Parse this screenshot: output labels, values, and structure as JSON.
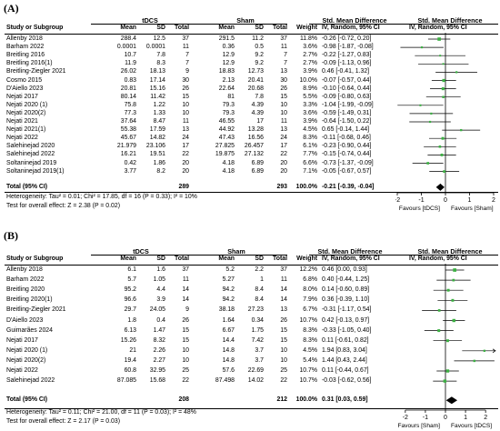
{
  "chart_data": [
    {
      "type": "forest",
      "panel_label": "(A)",
      "title": "Std. Mean Difference",
      "subtitle": "IV, Random, 95% CI",
      "columns": {
        "study": "Study or Subgroup",
        "group1": "tDCS",
        "group2": "Sham",
        "mean": "Mean",
        "sd": "SD",
        "total": "Total",
        "weight": "Weight",
        "effect_header": "Std. Mean Difference",
        "effect_sub": "IV, Random, 95% CI"
      },
      "studies": [
        {
          "name": "Allenby 2018",
          "t_mean": "288.4",
          "t_sd": "12.5",
          "t_n": "37",
          "s_mean": "291.5",
          "s_sd": "11.2",
          "s_n": "37",
          "weight": "11.8%",
          "ci_text": "-0.26 [-0.72, 0.20]",
          "smd": -0.26,
          "lo": -0.72,
          "hi": 0.2
        },
        {
          "name": "Barham 2022",
          "t_mean": "0.0001",
          "t_sd": "0.0001",
          "t_n": "11",
          "s_mean": "0.36",
          "s_sd": "0.5",
          "s_n": "11",
          "weight": "3.6%",
          "ci_text": "-0.98 [-1.87, -0.08]",
          "smd": -0.98,
          "lo": -1.87,
          "hi": -0.08
        },
        {
          "name": "Breitling 2016",
          "t_mean": "10.7",
          "t_sd": "7.8",
          "t_n": "7",
          "s_mean": "12.9",
          "s_sd": "9.2",
          "s_n": "7",
          "weight": "2.7%",
          "ci_text": "-0.22 [-1.27, 0.83]",
          "smd": -0.22,
          "lo": -1.27,
          "hi": 0.83
        },
        {
          "name": "Breitling 2016(1)",
          "t_mean": "11.9",
          "t_sd": "8.3",
          "t_n": "7",
          "s_mean": "12.9",
          "s_sd": "9.2",
          "s_n": "7",
          "weight": "2.7%",
          "ci_text": "-0.09 [-1.13, 0.96]",
          "smd": -0.09,
          "lo": -1.13,
          "hi": 0.96
        },
        {
          "name": "Breitling-Ziegler 2021",
          "t_mean": "26.02",
          "t_sd": "18.13",
          "t_n": "9",
          "s_mean": "18.83",
          "s_sd": "12.73",
          "s_n": "13",
          "weight": "3.9%",
          "ci_text": "0.46 [-0.41, 1.32]",
          "smd": 0.46,
          "lo": -0.41,
          "hi": 1.32
        },
        {
          "name": "Cosmo 2015",
          "t_mean": "0.83",
          "t_sd": "17.14",
          "t_n": "30",
          "s_mean": "2.13",
          "s_sd": "20.41",
          "s_n": "30",
          "weight": "10.0%",
          "ci_text": "-0.07 [-0.57, 0.44]",
          "smd": -0.07,
          "lo": -0.57,
          "hi": 0.44
        },
        {
          "name": "D'Aiello 2023",
          "t_mean": "20.81",
          "t_sd": "15.16",
          "t_n": "26",
          "s_mean": "22.64",
          "s_sd": "20.68",
          "s_n": "26",
          "weight": "8.9%",
          "ci_text": "-0.10 [-0.64, 0.44]",
          "smd": -0.1,
          "lo": -0.64,
          "hi": 0.44
        },
        {
          "name": "Nejati 2017",
          "t_mean": "80.14",
          "t_sd": "11.42",
          "t_n": "15",
          "s_mean": "81",
          "s_sd": "7.8",
          "s_n": "15",
          "weight": "5.5%",
          "ci_text": "-0.09 [-0.80, 0.63]",
          "smd": -0.09,
          "lo": -0.8,
          "hi": 0.63
        },
        {
          "name": "Nejati 2020 (1)",
          "t_mean": "75.8",
          "t_sd": "1.22",
          "t_n": "10",
          "s_mean": "79.3",
          "s_sd": "4.39",
          "s_n": "10",
          "weight": "3.3%",
          "ci_text": "-1.04 [-1.99, -0.09]",
          "smd": -1.04,
          "lo": -1.99,
          "hi": -0.09
        },
        {
          "name": "Nejati 2020(2)",
          "t_mean": "77.3",
          "t_sd": "1.33",
          "t_n": "10",
          "s_mean": "79.3",
          "s_sd": "4.39",
          "s_n": "10",
          "weight": "3.6%",
          "ci_text": "-0.59 [-1.49, 0.31]",
          "smd": -0.59,
          "lo": -1.49,
          "hi": 0.31
        },
        {
          "name": "Nejati 2021",
          "t_mean": "37.64",
          "t_sd": "8.47",
          "t_n": "11",
          "s_mean": "46.55",
          "s_sd": "17",
          "s_n": "11",
          "weight": "3.9%",
          "ci_text": "-0.64 [-1.50, 0.22]",
          "smd": -0.64,
          "lo": -1.5,
          "hi": 0.22
        },
        {
          "name": "Nejati 2021(1)",
          "t_mean": "55.38",
          "t_sd": "17.59",
          "t_n": "13",
          "s_mean": "44.92",
          "s_sd": "13.28",
          "s_n": "13",
          "weight": "4.5%",
          "ci_text": "0.65 [-0.14, 1.44]",
          "smd": 0.65,
          "lo": -0.14,
          "hi": 1.44
        },
        {
          "name": "Nejati 2022",
          "t_mean": "45.67",
          "t_sd": "14.82",
          "t_n": "24",
          "s_mean": "47.43",
          "s_sd": "16.56",
          "s_n": "24",
          "weight": "8.3%",
          "ci_text": "-0.11 [-0.68, 0.46]",
          "smd": -0.11,
          "lo": -0.68,
          "hi": 0.46
        },
        {
          "name": "Salehinejad 2020",
          "t_mean": "21.979",
          "t_sd": "23.106",
          "t_n": "17",
          "s_mean": "27.825",
          "s_sd": "26.457",
          "s_n": "17",
          "weight": "6.1%",
          "ci_text": "-0.23 [-0.90, 0.44]",
          "smd": -0.23,
          "lo": -0.9,
          "hi": 0.44
        },
        {
          "name": "Salehinejad 2022",
          "t_mean": "16.21",
          "t_sd": "19.51",
          "t_n": "22",
          "s_mean": "19.875",
          "s_sd": "27.132",
          "s_n": "22",
          "weight": "7.7%",
          "ci_text": "-0.15 [-0.74, 0.44]",
          "smd": -0.15,
          "lo": -0.74,
          "hi": 0.44
        },
        {
          "name": "Soltaninejad 2019",
          "t_mean": "0.42",
          "t_sd": "1.86",
          "t_n": "20",
          "s_mean": "4.18",
          "s_sd": "6.89",
          "s_n": "20",
          "weight": "6.6%",
          "ci_text": "-0.73 [-1.37, -0.09]",
          "smd": -0.73,
          "lo": -1.37,
          "hi": -0.09
        },
        {
          "name": "Soltaninejad 2019(1)",
          "t_mean": "3.77",
          "t_sd": "8.2",
          "t_n": "20",
          "s_mean": "4.18",
          "s_sd": "6.89",
          "s_n": "20",
          "weight": "7.1%",
          "ci_text": "-0.05 [-0.67, 0.57]",
          "smd": -0.05,
          "lo": -0.67,
          "hi": 0.57
        }
      ],
      "total": {
        "label": "Total (95% CI)",
        "t_n": "289",
        "s_n": "293",
        "weight": "100.0%",
        "ci_text": "-0.21 [-0.39, -0.04]",
        "smd": -0.21,
        "lo": -0.39,
        "hi": -0.04
      },
      "heterogeneity": "Heterogeneity: Tau² = 0.01; Chi² = 17.85, df = 16 (P = 0.33); I² = 10%",
      "overall_effect": "Test for overall effect: Z = 2.38 (P = 0.02)",
      "x_ticks": [
        "-2",
        "-1",
        "0",
        "1",
        "2"
      ],
      "xlim": [
        -2,
        2
      ],
      "favours_left": "Favours [tDCS]",
      "favours_right": "Favours [Sham]"
    },
    {
      "type": "forest",
      "panel_label": "(B)",
      "title": "Std. Mean Difference",
      "subtitle": "IV, Random, 95% CI",
      "columns": {
        "study": "Study or Subgroup",
        "group1": "tDCS",
        "group2": "Sham",
        "mean": "Mean",
        "sd": "SD",
        "total": "Total",
        "weight": "Weight",
        "effect_header": "Std. Mean Difference",
        "effect_sub": "IV, Random, 95% CI"
      },
      "studies": [
        {
          "name": "Allenby 2018",
          "t_mean": "6.1",
          "t_sd": "1.6",
          "t_n": "37",
          "s_mean": "5.2",
          "s_sd": "2.2",
          "s_n": "37",
          "weight": "12.2%",
          "ci_text": "0.46 [0.00, 0.93]",
          "smd": 0.46,
          "lo": 0.0,
          "hi": 0.93
        },
        {
          "name": "Barham 2022",
          "t_mean": "5.7",
          "t_sd": "1.05",
          "t_n": "11",
          "s_mean": "5.27",
          "s_sd": "1",
          "s_n": "11",
          "weight": "6.8%",
          "ci_text": "0.40 [-0.44, 1.25]",
          "smd": 0.4,
          "lo": -0.44,
          "hi": 1.25
        },
        {
          "name": "Breitling 2020",
          "t_mean": "95.2",
          "t_sd": "4.4",
          "t_n": "14",
          "s_mean": "94.2",
          "s_sd": "8.4",
          "s_n": "14",
          "weight": "8.0%",
          "ci_text": "0.14 [-0.60, 0.89]",
          "smd": 0.14,
          "lo": -0.6,
          "hi": 0.89
        },
        {
          "name": "Breitling 2020(1)",
          "t_mean": "96.6",
          "t_sd": "3.9",
          "t_n": "14",
          "s_mean": "94.2",
          "s_sd": "8.4",
          "s_n": "14",
          "weight": "7.9%",
          "ci_text": "0.36 [-0.39, 1.10]",
          "smd": 0.36,
          "lo": -0.39,
          "hi": 1.1
        },
        {
          "name": "Breitling-Ziegler 2021",
          "t_mean": "29.7",
          "t_sd": "24.05",
          "t_n": "9",
          "s_mean": "38.18",
          "s_sd": "27.23",
          "s_n": "13",
          "weight": "6.7%",
          "ci_text": "-0.31 [-1.17, 0.54]",
          "smd": -0.31,
          "lo": -1.17,
          "hi": 0.54
        },
        {
          "name": "D'Aiello 2023",
          "t_mean": "1.8",
          "t_sd": "0.4",
          "t_n": "26",
          "s_mean": "1.64",
          "s_sd": "0.34",
          "s_n": "26",
          "weight": "10.7%",
          "ci_text": "0.42 [-0.13, 0.97]",
          "smd": 0.42,
          "lo": -0.13,
          "hi": 0.97
        },
        {
          "name": "Guimarães 2024",
          "t_mean": "6.13",
          "t_sd": "1.47",
          "t_n": "15",
          "s_mean": "6.67",
          "s_sd": "1.75",
          "s_n": "15",
          "weight": "8.3%",
          "ci_text": "-0.33 [-1.05, 0.40]",
          "smd": -0.33,
          "lo": -1.05,
          "hi": 0.4
        },
        {
          "name": "Nejati 2017",
          "t_mean": "15.26",
          "t_sd": "8.32",
          "t_n": "15",
          "s_mean": "14.4",
          "s_sd": "7.42",
          "s_n": "15",
          "weight": "8.3%",
          "ci_text": "0.11 [-0.61, 0.82]",
          "smd": 0.11,
          "lo": -0.61,
          "hi": 0.82
        },
        {
          "name": "Nejati 2020 (1)",
          "t_mean": "21",
          "t_sd": "2.26",
          "t_n": "10",
          "s_mean": "14.8",
          "s_sd": "3.7",
          "s_n": "10",
          "weight": "4.5%",
          "ci_text": "1.94 [0.83, 3.04]",
          "smd": 1.94,
          "lo": 0.83,
          "hi": 3.04
        },
        {
          "name": "Nejati 2020(2)",
          "t_mean": "19.4",
          "t_sd": "2.27",
          "t_n": "10",
          "s_mean": "14.8",
          "s_sd": "3.7",
          "s_n": "10",
          "weight": "5.4%",
          "ci_text": "1.44 [0.43, 2.44]",
          "smd": 1.44,
          "lo": 0.43,
          "hi": 2.44
        },
        {
          "name": "Nejati 2022",
          "t_mean": "60.8",
          "t_sd": "32.95",
          "t_n": "25",
          "s_mean": "57.6",
          "s_sd": "22.69",
          "s_n": "25",
          "weight": "10.7%",
          "ci_text": "0.11 [-0.44, 0.67]",
          "smd": 0.11,
          "lo": -0.44,
          "hi": 0.67
        },
        {
          "name": "Salehinejad 2022",
          "t_mean": "87.085",
          "t_sd": "15.68",
          "t_n": "22",
          "s_mean": "87.498",
          "s_sd": "14.02",
          "s_n": "22",
          "weight": "10.7%",
          "ci_text": "-0.03 [-0.62, 0.56]",
          "smd": -0.03,
          "lo": -0.62,
          "hi": 0.56
        }
      ],
      "total": {
        "label": "Total (95% CI)",
        "t_n": "208",
        "s_n": "212",
        "weight": "100.0%",
        "ci_text": "0.31 [0.03, 0.59]",
        "smd": 0.31,
        "lo": 0.03,
        "hi": 0.59
      },
      "heterogeneity": "Heterogeneity: Tau² = 0.11; Chi² = 21.00, df = 11 (P = 0.03); I² = 48%",
      "overall_effect": "Test for overall effect: Z = 2.17 (P = 0.03)",
      "x_ticks": [
        "-2",
        "-1",
        "0",
        "1",
        "2"
      ],
      "xlim": [
        -2.4,
        2.4
      ],
      "favours_left": "Favours [Sham]",
      "favours_right": "Favours [tDCS]"
    }
  ],
  "colors": {
    "study_marker": "#3cb043",
    "diamond": "#000000",
    "line": "#000000"
  }
}
